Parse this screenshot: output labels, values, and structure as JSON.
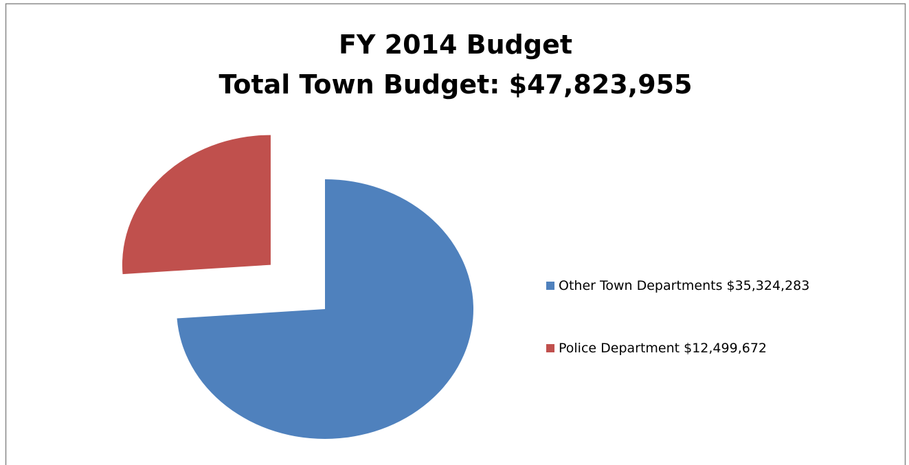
{
  "chart_data": {
    "type": "pie",
    "title": "FY 2014 Budget",
    "subtitle": "Total Town Budget: $47,823,955",
    "categories": [
      "Other Town Departments",
      "Police Department"
    ],
    "values": [
      35324283,
      12499672
    ],
    "value_labels": [
      "$35,324,283",
      "$12,499,672"
    ],
    "colors": [
      "#4f81bd",
      "#c0504d"
    ],
    "legend": "right"
  }
}
